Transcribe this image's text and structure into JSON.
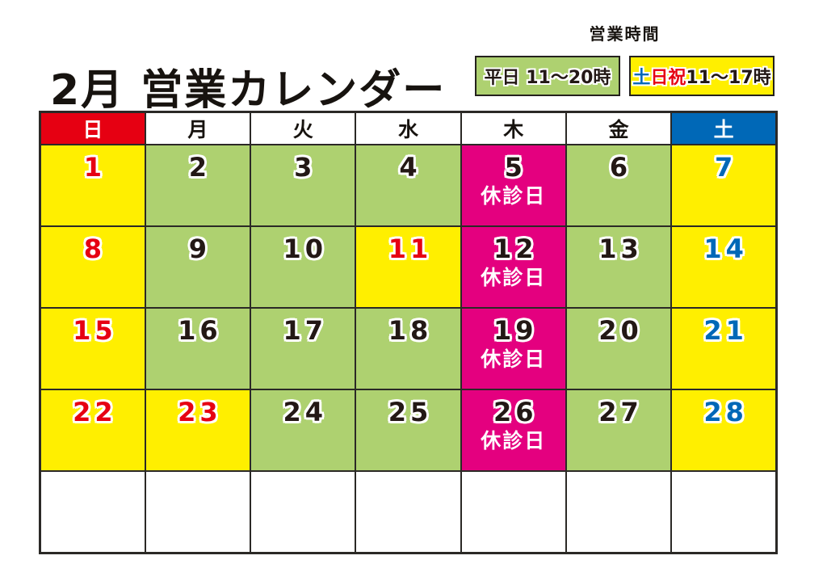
{
  "colors": {
    "red": "#e60012",
    "blue": "#0068b7",
    "yellow": "#ffef00",
    "green": "#aed170",
    "magenta": "#e4007f",
    "ink": "#231815",
    "border": "#2b2926"
  },
  "page": {
    "title": "2月 営業カレンダー"
  },
  "hours": {
    "heading": "営業時間",
    "items": [
      {
        "name": "legend-weekday-hours",
        "bg": "green",
        "segments": [
          {
            "text": "平日 11～20時",
            "color": "ink"
          }
        ]
      },
      {
        "name": "legend-weekend-hours",
        "bg": "yellow",
        "segments": [
          {
            "text": "土",
            "color": "blue"
          },
          {
            "text": "日祝",
            "color": "red"
          },
          {
            "text": " 11～17時",
            "color": "ink"
          }
        ]
      }
    ]
  },
  "calendar": {
    "headers": [
      {
        "label": "日",
        "name": "sunday",
        "type": "sun"
      },
      {
        "label": "月",
        "name": "monday",
        "type": "plain"
      },
      {
        "label": "火",
        "name": "tuesday",
        "type": "plain"
      },
      {
        "label": "水",
        "name": "wednesday",
        "type": "plain"
      },
      {
        "label": "木",
        "name": "thursday",
        "type": "plain"
      },
      {
        "label": "金",
        "name": "friday",
        "type": "plain"
      },
      {
        "label": "土",
        "name": "saturday",
        "type": "sat"
      }
    ],
    "weeks": [
      [
        {
          "day": "1",
          "type": "sunday"
        },
        {
          "day": "2",
          "type": "weekday"
        },
        {
          "day": "3",
          "type": "weekday"
        },
        {
          "day": "4",
          "type": "weekday"
        },
        {
          "day": "5",
          "type": "closed",
          "label": "休診日"
        },
        {
          "day": "6",
          "type": "weekday"
        },
        {
          "day": "7",
          "type": "saturday"
        }
      ],
      [
        {
          "day": "8",
          "type": "sunday"
        },
        {
          "day": "9",
          "type": "weekday"
        },
        {
          "day": "10",
          "type": "weekday"
        },
        {
          "day": "11",
          "type": "holiday"
        },
        {
          "day": "12",
          "type": "closed",
          "label": "休診日"
        },
        {
          "day": "13",
          "type": "weekday"
        },
        {
          "day": "14",
          "type": "saturday"
        }
      ],
      [
        {
          "day": "15",
          "type": "sunday"
        },
        {
          "day": "16",
          "type": "weekday"
        },
        {
          "day": "17",
          "type": "weekday"
        },
        {
          "day": "18",
          "type": "weekday"
        },
        {
          "day": "19",
          "type": "closed",
          "label": "休診日"
        },
        {
          "day": "20",
          "type": "weekday"
        },
        {
          "day": "21",
          "type": "saturday"
        }
      ],
      [
        {
          "day": "22",
          "type": "sunday"
        },
        {
          "day": "23",
          "type": "holiday"
        },
        {
          "day": "24",
          "type": "weekday"
        },
        {
          "day": "25",
          "type": "weekday"
        },
        {
          "day": "26",
          "type": "closed",
          "label": "休診日"
        },
        {
          "day": "27",
          "type": "weekday"
        },
        {
          "day": "28",
          "type": "saturday"
        }
      ],
      [
        {
          "day": "",
          "type": "empty"
        },
        {
          "day": "",
          "type": "empty"
        },
        {
          "day": "",
          "type": "empty"
        },
        {
          "day": "",
          "type": "empty"
        },
        {
          "day": "",
          "type": "empty"
        },
        {
          "day": "",
          "type": "empty"
        },
        {
          "day": "",
          "type": "empty"
        }
      ]
    ]
  }
}
